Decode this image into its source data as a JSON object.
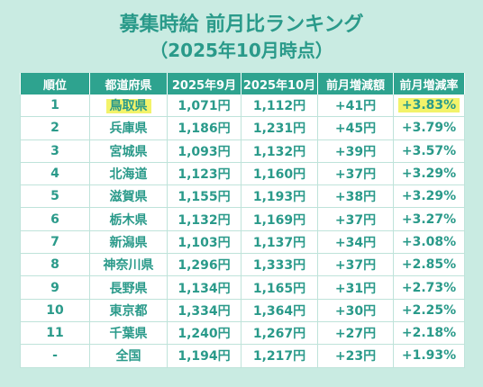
{
  "title": "募集時給 前月比ランキング",
  "subtitle": "（2025年10月時点）",
  "chart_data": {
    "type": "table",
    "columns": [
      "順位",
      "都道府県",
      "2025年9月",
      "2025年10月",
      "前月増減額",
      "前月増減率"
    ],
    "rows": [
      [
        "1",
        "鳥取県",
        "1,071円",
        "1,112円",
        "+41円",
        "+3.83%"
      ],
      [
        "2",
        "兵庫県",
        "1,186円",
        "1,231円",
        "+45円",
        "+3.79%"
      ],
      [
        "3",
        "宮城県",
        "1,093円",
        "1,132円",
        "+39円",
        "+3.57%"
      ],
      [
        "4",
        "北海道",
        "1,123円",
        "1,160円",
        "+37円",
        "+3.29%"
      ],
      [
        "5",
        "滋賀県",
        "1,155円",
        "1,193円",
        "+38円",
        "+3.29%"
      ],
      [
        "6",
        "栃木県",
        "1,132円",
        "1,169円",
        "+37円",
        "+3.27%"
      ],
      [
        "7",
        "新潟県",
        "1,103円",
        "1,137円",
        "+34円",
        "+3.08%"
      ],
      [
        "8",
        "神奈川県",
        "1,296円",
        "1,333円",
        "+37円",
        "+2.85%"
      ],
      [
        "9",
        "長野県",
        "1,134円",
        "1,165円",
        "+31円",
        "+2.73%"
      ],
      [
        "10",
        "東京都",
        "1,334円",
        "1,364円",
        "+30円",
        "+2.25%"
      ],
      [
        "11",
        "千葉県",
        "1,240円",
        "1,267円",
        "+27円",
        "+2.18%"
      ],
      [
        "-",
        "全国",
        "1,194円",
        "1,217円",
        "+23円",
        "+1.93%"
      ]
    ],
    "highlight": {
      "row": 0,
      "columns": [
        1,
        5
      ],
      "color": "#f3f36a"
    }
  },
  "colors": {
    "header_bg": "#2ea38f",
    "text": "#2a9a8a",
    "background": "#c9ebe2",
    "highlight": "#f3f36a"
  }
}
